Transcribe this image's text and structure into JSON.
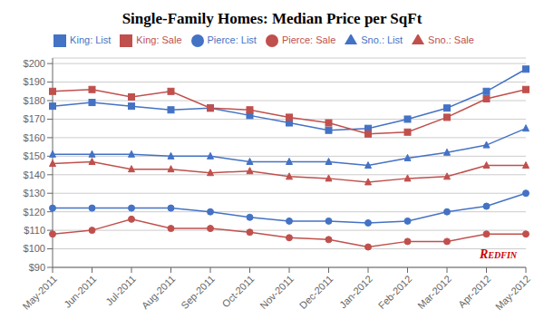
{
  "chart_data": {
    "type": "line",
    "title": "Single-Family Homes: Median Price per SqFt",
    "categories": [
      "May-2011",
      "Jun-2011",
      "Jul-2011",
      "Aug-2011",
      "Sep-2011",
      "Oct-2011",
      "Nov-2011",
      "Dec-2011",
      "Jan-2012",
      "Feb-2012",
      "Mar-2012",
      "Apr-2012",
      "May-2012"
    ],
    "series": [
      {
        "name": "King: List",
        "color": "#4472C4",
        "marker": "square",
        "values": [
          177,
          179,
          177,
          175,
          176,
          172,
          168,
          164,
          165,
          170,
          176,
          185,
          197
        ]
      },
      {
        "name": "King: Sale",
        "color": "#C0504D",
        "marker": "square",
        "values": [
          185,
          186,
          182,
          185,
          176,
          175,
          171,
          168,
          162,
          163,
          171,
          181,
          186
        ]
      },
      {
        "name": "Sno.: List",
        "color": "#4472C4",
        "marker": "triangle",
        "values": [
          151,
          151,
          151,
          150,
          150,
          147,
          147,
          147,
          145,
          149,
          152,
          156,
          165
        ]
      },
      {
        "name": "Sno.: Sale",
        "color": "#C0504D",
        "marker": "triangle",
        "values": [
          146,
          147,
          143,
          143,
          141,
          142,
          139,
          138,
          136,
          138,
          139,
          145,
          145
        ]
      },
      {
        "name": "Pierce: List",
        "color": "#4472C4",
        "marker": "circle",
        "values": [
          122,
          122,
          122,
          122,
          120,
          117,
          115,
          115,
          114,
          115,
          120,
          123,
          130
        ]
      },
      {
        "name": "Pierce: Sale",
        "color": "#C0504D",
        "marker": "circle",
        "values": [
          108,
          110,
          116,
          111,
          111,
          109,
          106,
          105,
          101,
          104,
          104,
          108,
          108
        ]
      }
    ],
    "ylim": [
      90,
      203
    ],
    "yticks": [
      {
        "value": 90,
        "label": "$90"
      },
      {
        "value": 100,
        "label": "$100"
      },
      {
        "value": 110,
        "label": "$110"
      },
      {
        "value": 120,
        "label": "$120"
      },
      {
        "value": 130,
        "label": "$130"
      },
      {
        "value": 140,
        "label": "$140"
      },
      {
        "value": 150,
        "label": "$150"
      },
      {
        "value": 160,
        "label": "$160"
      },
      {
        "value": 170,
        "label": "$170"
      },
      {
        "value": 180,
        "label": "$180"
      },
      {
        "value": 190,
        "label": "$190"
      },
      {
        "value": 200,
        "label": "$200"
      }
    ],
    "grid": true,
    "legend": "top",
    "annotations": [
      {
        "text": "Redfin",
        "color": "#CC0000"
      }
    ]
  }
}
